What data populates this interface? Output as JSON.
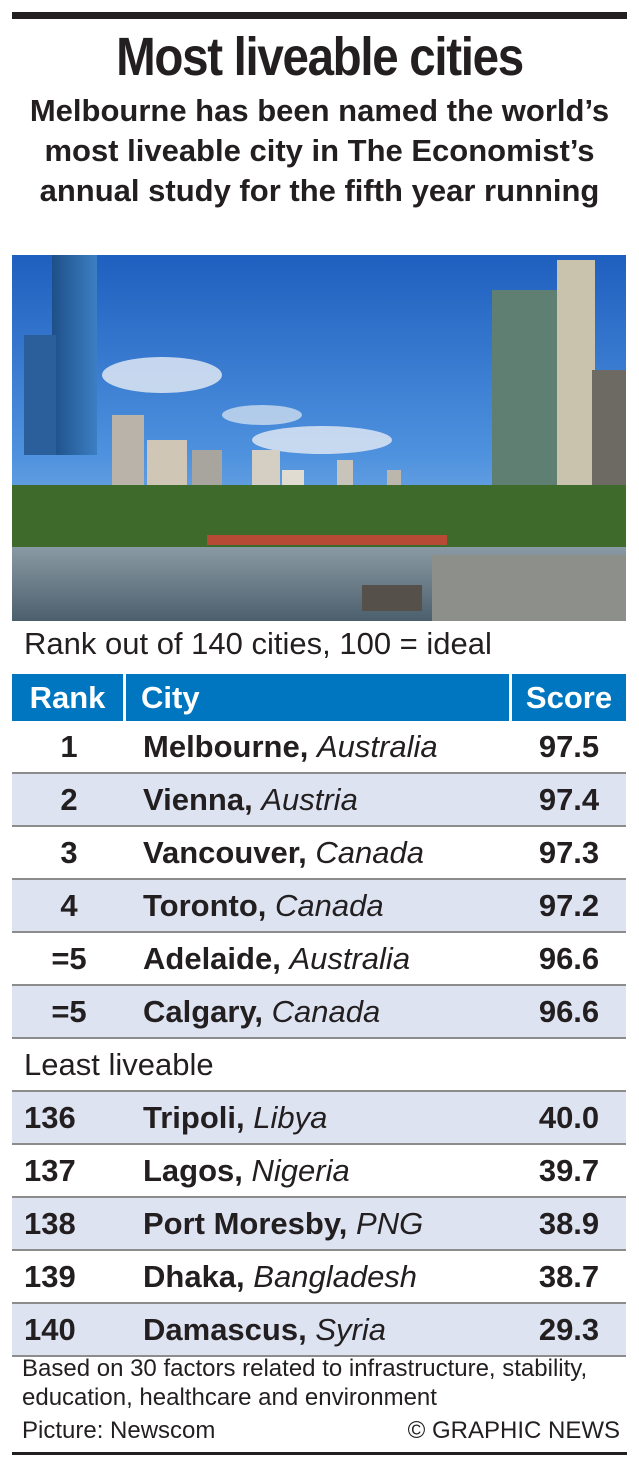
{
  "header": {
    "title": "Most liveable cities",
    "subtitle": "Melbourne has been named the world’s most liveable city in The Economist’s annual study for the fifth year running"
  },
  "photo": {
    "subject": "Melbourne skyline over the Yarra River"
  },
  "caption": "Rank out of 140 cities, 100 = ideal",
  "chart_data": {
    "type": "table",
    "columns": [
      "Rank",
      "City",
      "Score"
    ],
    "rows": [
      {
        "rank": "1",
        "city": "Melbourne,",
        "country": "Australia",
        "score": "97.5"
      },
      {
        "rank": "2",
        "city": "Vienna,",
        "country": "Austria",
        "score": "97.4"
      },
      {
        "rank": "3",
        "city": "Vancouver,",
        "country": "Canada",
        "score": "97.3"
      },
      {
        "rank": "4",
        "city": "Toronto,",
        "country": "Canada",
        "score": "97.2"
      },
      {
        "rank": "=5",
        "city": "Adelaide,",
        "country": "Australia",
        "score": "96.6"
      },
      {
        "rank": "=5",
        "city": "Calgary,",
        "country": "Canada",
        "score": "96.6"
      }
    ],
    "section_label": "Least liveable",
    "bottom_rows": [
      {
        "rank": "136",
        "city": "Tripoli,",
        "country": "Libya",
        "score": "40.0"
      },
      {
        "rank": "137",
        "city": "Lagos,",
        "country": "Nigeria",
        "score": "39.7"
      },
      {
        "rank": "138",
        "city": "Port Moresby,",
        "country": "PNG",
        "score": "38.9"
      },
      {
        "rank": "139",
        "city": "Dhaka,",
        "country": "Bangladesh",
        "score": "38.7"
      },
      {
        "rank": "140",
        "city": "Damascus,",
        "country": "Syria",
        "score": "29.3"
      }
    ]
  },
  "footer": {
    "note": "Based on 30 factors related to infrastructure, stability, education, healthcare and environment",
    "picture_credit": "Picture: Newscom",
    "copyright": "© GRAPHIC NEWS"
  },
  "colors": {
    "header_blue": "#0076c0",
    "row_shade": "#dde3f1",
    "rule": "#231f20"
  }
}
